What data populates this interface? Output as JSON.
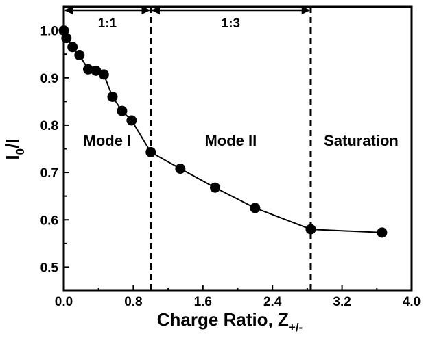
{
  "chart_data": {
    "type": "scatter",
    "title": "",
    "xlabel": "Charge Ratio, Z",
    "xlabel_subscript": "+/-",
    "ylabel": "I",
    "ylabel_subscript": "0",
    "ylabel_suffix": "/I",
    "xlim": [
      0.0,
      4.0
    ],
    "ylim": [
      0.45,
      1.05
    ],
    "x_ticks": [
      0.0,
      0.8,
      1.6,
      2.4,
      3.2,
      4.0
    ],
    "x_tick_labels": [
      "0.0",
      "0.8",
      "1.6",
      "2.4",
      "3.2",
      "4.0"
    ],
    "y_ticks": [
      0.5,
      0.6,
      0.7,
      0.8,
      0.9,
      1.0
    ],
    "y_tick_labels": [
      "0.5",
      "0.6",
      "0.7",
      "0.8",
      "0.9",
      "1.0"
    ],
    "grid": false,
    "series": [
      {
        "x": [
          0.0,
          0.03,
          0.1,
          0.18,
          0.28,
          0.37,
          0.46,
          0.56,
          0.67,
          0.78,
          1.0,
          1.34,
          1.74,
          2.2,
          2.84,
          3.66
        ],
        "y": [
          1.0,
          0.984,
          0.965,
          0.948,
          0.918,
          0.915,
          0.907,
          0.86,
          0.83,
          0.81,
          0.743,
          0.708,
          0.668,
          0.625,
          0.58,
          0.573
        ]
      }
    ],
    "dividers": [
      1.0,
      2.84
    ],
    "ranges": [
      {
        "label": "1:1",
        "from": 0.0,
        "to": 1.0
      },
      {
        "label": "1:3",
        "from": 1.0,
        "to": 2.84
      }
    ],
    "regions": [
      {
        "label": "Mode I",
        "x": 0.5
      },
      {
        "label": "Mode II",
        "x": 1.92
      },
      {
        "label": "Saturation",
        "x": 3.42
      }
    ],
    "region_label_y": 0.8
  }
}
